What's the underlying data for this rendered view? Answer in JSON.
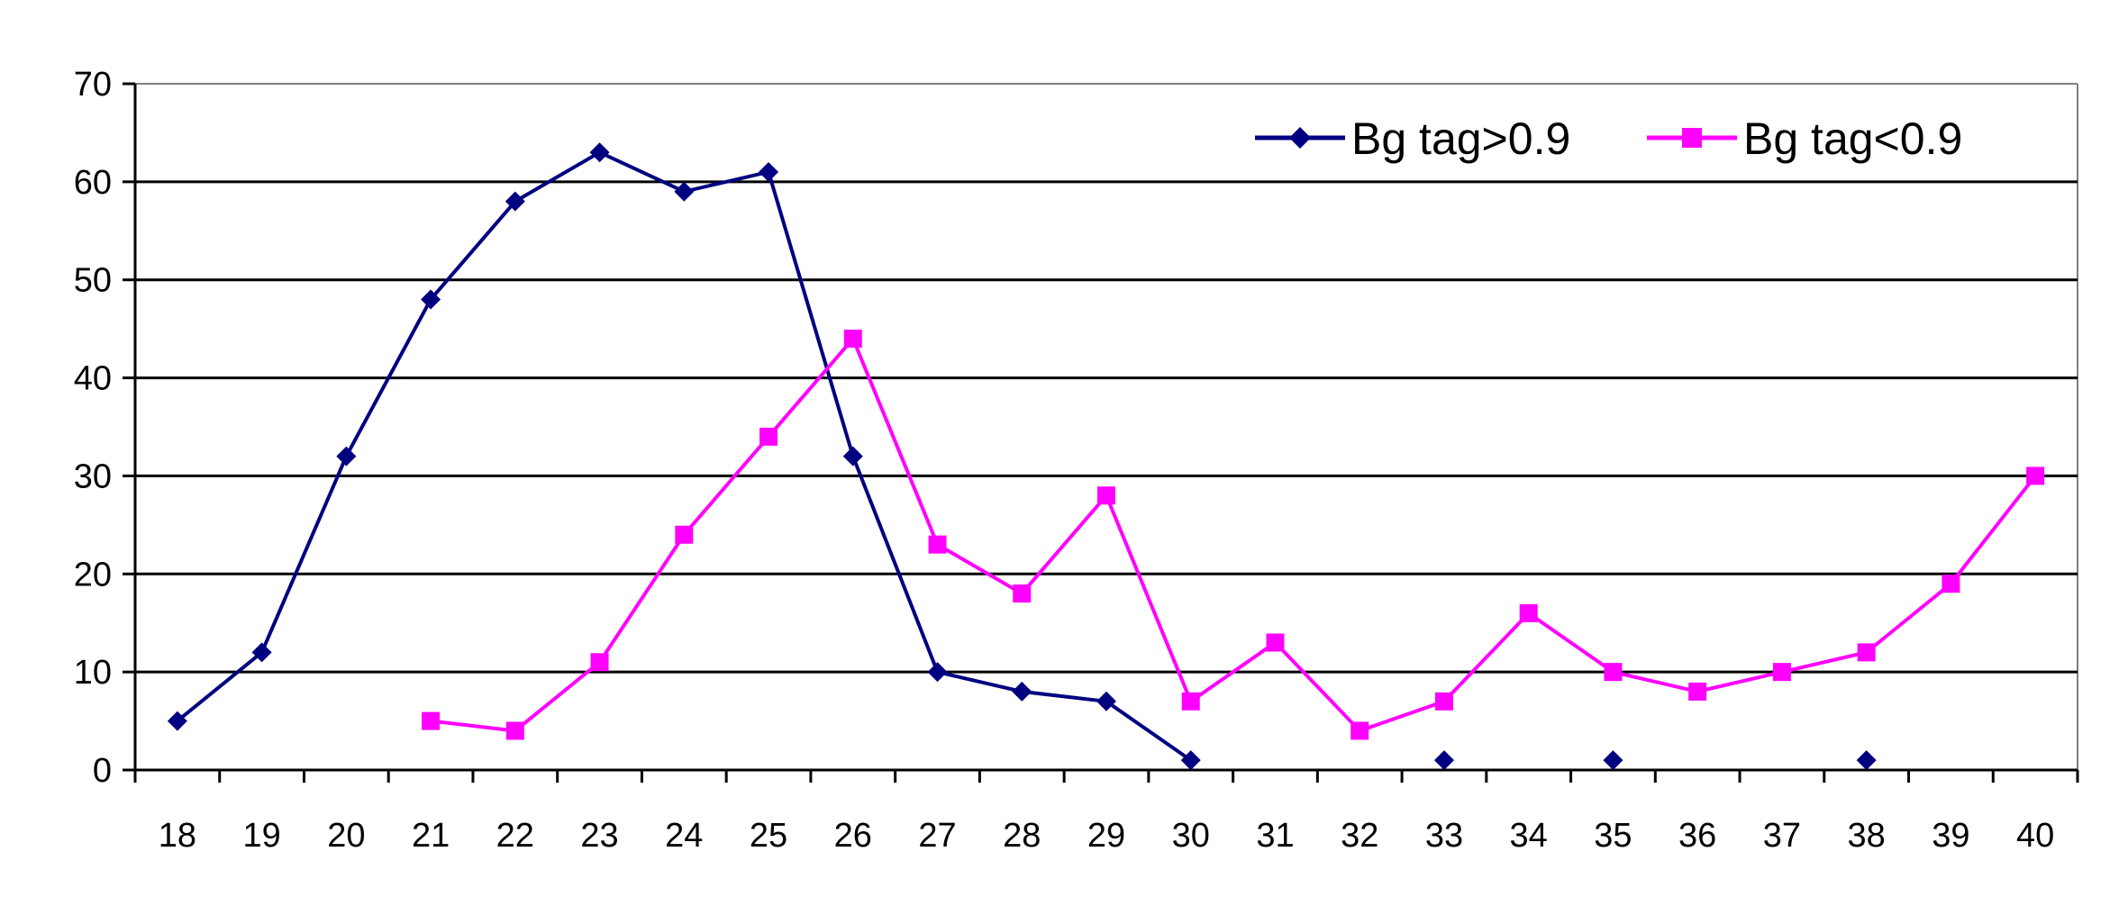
{
  "chart_data": {
    "type": "line",
    "title": "",
    "xlabel": "",
    "ylabel": "",
    "x": [
      "18",
      "19",
      "20",
      "21",
      "22",
      "23",
      "24",
      "25",
      "26",
      "27",
      "28",
      "29",
      "30",
      "31",
      "32",
      "33",
      "34",
      "35",
      "36",
      "37",
      "38",
      "39",
      "40"
    ],
    "ylim": [
      0,
      70
    ],
    "yticks": [
      "0",
      "10",
      "20",
      "30",
      "40",
      "50",
      "60",
      "70"
    ],
    "grid": "horizontal",
    "legend_position": "top-right",
    "series": [
      {
        "name": "Bg tag>0.9",
        "color": "#000080",
        "marker": "diamond",
        "values": [
          5,
          12,
          32,
          48,
          58,
          63,
          59,
          61,
          32,
          10,
          8,
          7,
          1,
          null,
          null,
          1,
          null,
          1,
          null,
          null,
          1,
          null,
          null
        ]
      },
      {
        "name": "Bg tag<0.9",
        "color": "#ff00ff",
        "marker": "square",
        "values": [
          null,
          null,
          null,
          5,
          4,
          11,
          24,
          34,
          44,
          23,
          18,
          28,
          7,
          13,
          4,
          7,
          16,
          10,
          8,
          10,
          12,
          19,
          30
        ]
      }
    ]
  }
}
